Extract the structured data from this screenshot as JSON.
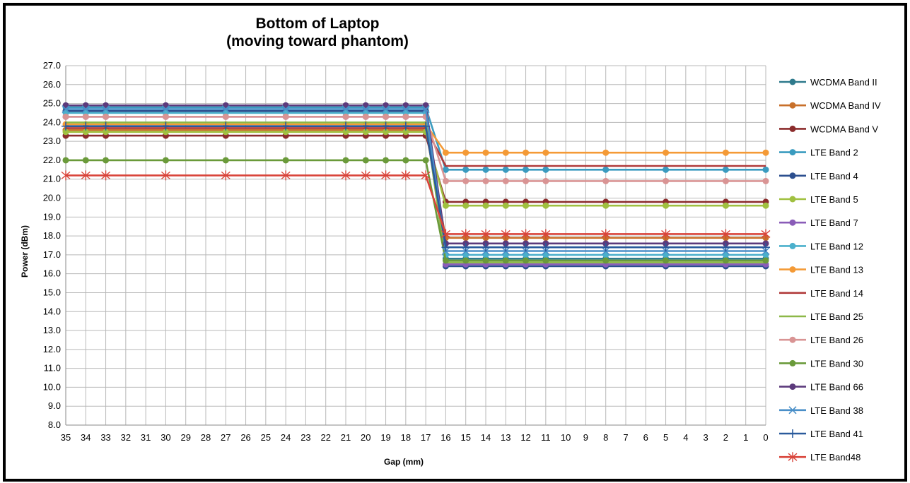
{
  "chart_data": {
    "type": "line",
    "title": "Bottom of Laptop",
    "subtitle": "(moving toward phantom)",
    "xlabel": "Gap (mm)",
    "ylabel": "Power (dBm)",
    "ylim": [
      8.0,
      27.0
    ],
    "ytick_step": 1.0,
    "categories": [
      "35",
      "34",
      "33",
      "32",
      "31",
      "30",
      "29",
      "28",
      "27",
      "26",
      "25",
      "24",
      "23",
      "22",
      "21",
      "20",
      "19",
      "18",
      "17",
      "16",
      "15",
      "14",
      "13",
      "12",
      "11",
      "10",
      "9",
      "8",
      "7",
      "6",
      "5",
      "4",
      "3",
      "2",
      "1",
      "0"
    ],
    "marker_categories": [
      "35",
      "34",
      "33",
      "30",
      "27",
      "24",
      "21",
      "20",
      "19",
      "18",
      "17",
      "16",
      "15",
      "14",
      "13",
      "12",
      "11",
      "8",
      "5",
      "2",
      "0"
    ],
    "grid": true,
    "legend_position": "right",
    "series": [
      {
        "name": "WCDMA Band II",
        "color": "#2e7a8c",
        "marker": "circle",
        "before": 24.6,
        "after": 16.8
      },
      {
        "name": "WCDMA Band IV",
        "color": "#c8702b",
        "marker": "circle",
        "before": 23.6,
        "after": 17.9
      },
      {
        "name": "WCDMA Band V",
        "color": "#8b2c2c",
        "marker": "circle",
        "before": 23.3,
        "after": 19.8
      },
      {
        "name": "LTE Band 2",
        "color": "#3a9bbf",
        "marker": "circle",
        "before": 24.8,
        "after": 21.5
      },
      {
        "name": "LTE Band 4",
        "color": "#2c4f8f",
        "marker": "circle",
        "before": 24.6,
        "after": 16.4
      },
      {
        "name": "LTE Band 5",
        "color": "#a0c040",
        "marker": "circle",
        "before": 23.5,
        "after": 19.6
      },
      {
        "name": "LTE Band 7",
        "color": "#8a5cb8",
        "marker": "circle",
        "before": 24.3,
        "after": 16.5
      },
      {
        "name": "LTE Band 12",
        "color": "#4bb0cc",
        "marker": "circle",
        "before": 24.5,
        "after": 17.0
      },
      {
        "name": "LTE Band 13",
        "color": "#f49a36",
        "marker": "circle",
        "before": 23.9,
        "after": 22.4
      },
      {
        "name": "LTE Band 14",
        "color": "#b03a3a",
        "marker": "none",
        "before": 23.7,
        "after": 21.7
      },
      {
        "name": "LTE Band 25",
        "color": "#8db848",
        "marker": "none",
        "before": 24.0,
        "after": 16.6
      },
      {
        "name": "LTE Band 26",
        "color": "#d99494",
        "marker": "circle",
        "before": 24.3,
        "after": 20.9
      },
      {
        "name": "LTE Band 30",
        "color": "#6a9a3a",
        "marker": "circle",
        "before": 22.0,
        "after": 16.7
      },
      {
        "name": "LTE Band 66",
        "color": "#5c3a7c",
        "marker": "circle",
        "before": 24.9,
        "after": 17.6
      },
      {
        "name": "LTE Band 38",
        "color": "#4a8fc8",
        "marker": "x",
        "before": 24.7,
        "after": 17.2
      },
      {
        "name": "LTE Band 41",
        "color": "#2a5a9c",
        "marker": "plus",
        "before": 23.8,
        "after": 17.4
      },
      {
        "name": "LTE Band48",
        "color": "#d9443a",
        "marker": "star",
        "before": 21.2,
        "after": 18.1
      }
    ]
  }
}
